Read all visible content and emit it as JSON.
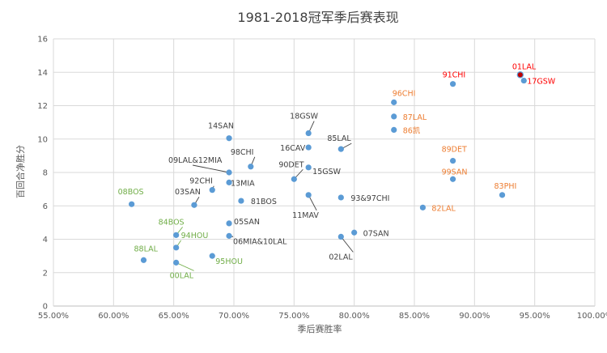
{
  "chart_data": {
    "type": "scatter",
    "title": "1981-2018冠军季后赛表现",
    "xlabel": "季后赛胜率",
    "ylabel": "百回合净胜分",
    "xlim": [
      0.55,
      1.0
    ],
    "ylim": [
      0,
      16
    ],
    "x_ticks": [
      "55.00%",
      "60.00%",
      "65.00%",
      "70.00%",
      "75.00%",
      "80.00%",
      "85.00%",
      "90.00%",
      "95.00%",
      "100.00%"
    ],
    "y_ticks": [
      "0",
      "2",
      "4",
      "6",
      "8",
      "10",
      "12",
      "14",
      "16"
    ],
    "grid": true,
    "colors": {
      "marker": "#5b9bd5",
      "highlight_marker": "#c00000",
      "red": "#ff0000",
      "orange": "#ed7d31",
      "green": "#70ad47",
      "dark": "#404040"
    },
    "points": [
      {
        "label": "01LAL",
        "x": 0.938,
        "y": 13.85,
        "color": "red",
        "highlight": true
      },
      {
        "label": "17GSW",
        "x": 0.941,
        "y": 13.5,
        "color": "red"
      },
      {
        "label": "91CHI",
        "x": 0.882,
        "y": 13.3,
        "color": "red"
      },
      {
        "label": "96CHI",
        "x": 0.833,
        "y": 12.2,
        "color": "orange"
      },
      {
        "label": "87LAL",
        "x": 0.833,
        "y": 11.35,
        "color": "orange"
      },
      {
        "label": "86凯",
        "x": 0.833,
        "y": 10.55,
        "color": "orange"
      },
      {
        "label": "89DET",
        "x": 0.882,
        "y": 8.7,
        "color": "orange"
      },
      {
        "label": "99SAN",
        "x": 0.882,
        "y": 7.6,
        "color": "orange"
      },
      {
        "label": "83PHI",
        "x": 0.923,
        "y": 6.65,
        "color": "orange"
      },
      {
        "label": "82LAL",
        "x": 0.857,
        "y": 5.9,
        "color": "orange"
      },
      {
        "label": "18GSW",
        "x": 0.762,
        "y": 10.35,
        "color": "dark"
      },
      {
        "label": "16CAV",
        "x": 0.762,
        "y": 9.5,
        "color": "dark"
      },
      {
        "label": "85LAL",
        "x": 0.789,
        "y": 9.4,
        "color": "dark"
      },
      {
        "label": "14SAN",
        "x": 0.696,
        "y": 10.05,
        "color": "dark"
      },
      {
        "label": "98CHI",
        "x": 0.714,
        "y": 8.35,
        "color": "dark"
      },
      {
        "label": "09LAL&12MIA",
        "x": 0.696,
        "y": 8.0,
        "color": "dark"
      },
      {
        "label": "90DET",
        "x": 0.75,
        "y": 7.6,
        "color": "dark"
      },
      {
        "label": "15GSW",
        "x": 0.762,
        "y": 8.3,
        "color": "dark"
      },
      {
        "label": "92CHI",
        "x": 0.682,
        "y": 6.95,
        "color": "dark"
      },
      {
        "label": "13MIA",
        "x": 0.696,
        "y": 7.4,
        "color": "dark"
      },
      {
        "label": "03SAN",
        "x": 0.667,
        "y": 6.05,
        "color": "dark"
      },
      {
        "label": "81BOS",
        "x": 0.706,
        "y": 6.3,
        "color": "dark"
      },
      {
        "label": "11MAV",
        "x": 0.762,
        "y": 6.65,
        "color": "dark"
      },
      {
        "label": "93&97CHI",
        "x": 0.789,
        "y": 6.5,
        "color": "dark"
      },
      {
        "label": "05SAN",
        "x": 0.696,
        "y": 4.95,
        "color": "dark"
      },
      {
        "label": "06MIA&10LAL",
        "x": 0.696,
        "y": 4.2,
        "color": "dark"
      },
      {
        "label": "07SAN",
        "x": 0.8,
        "y": 4.4,
        "color": "dark"
      },
      {
        "label": "02LAL",
        "x": 0.789,
        "y": 4.15,
        "color": "dark"
      },
      {
        "label": "08BOS",
        "x": 0.615,
        "y": 6.1,
        "color": "green"
      },
      {
        "label": "84BOS",
        "x": 0.652,
        "y": 4.25,
        "color": "green"
      },
      {
        "label": "94HOU",
        "x": 0.652,
        "y": 3.5,
        "color": "green"
      },
      {
        "label": "88LAL",
        "x": 0.625,
        "y": 2.75,
        "color": "green"
      },
      {
        "label": "95HOU",
        "x": 0.682,
        "y": 3.0,
        "color": "green"
      },
      {
        "label": "00LAL",
        "x": 0.652,
        "y": 2.6,
        "color": "green"
      }
    ]
  }
}
